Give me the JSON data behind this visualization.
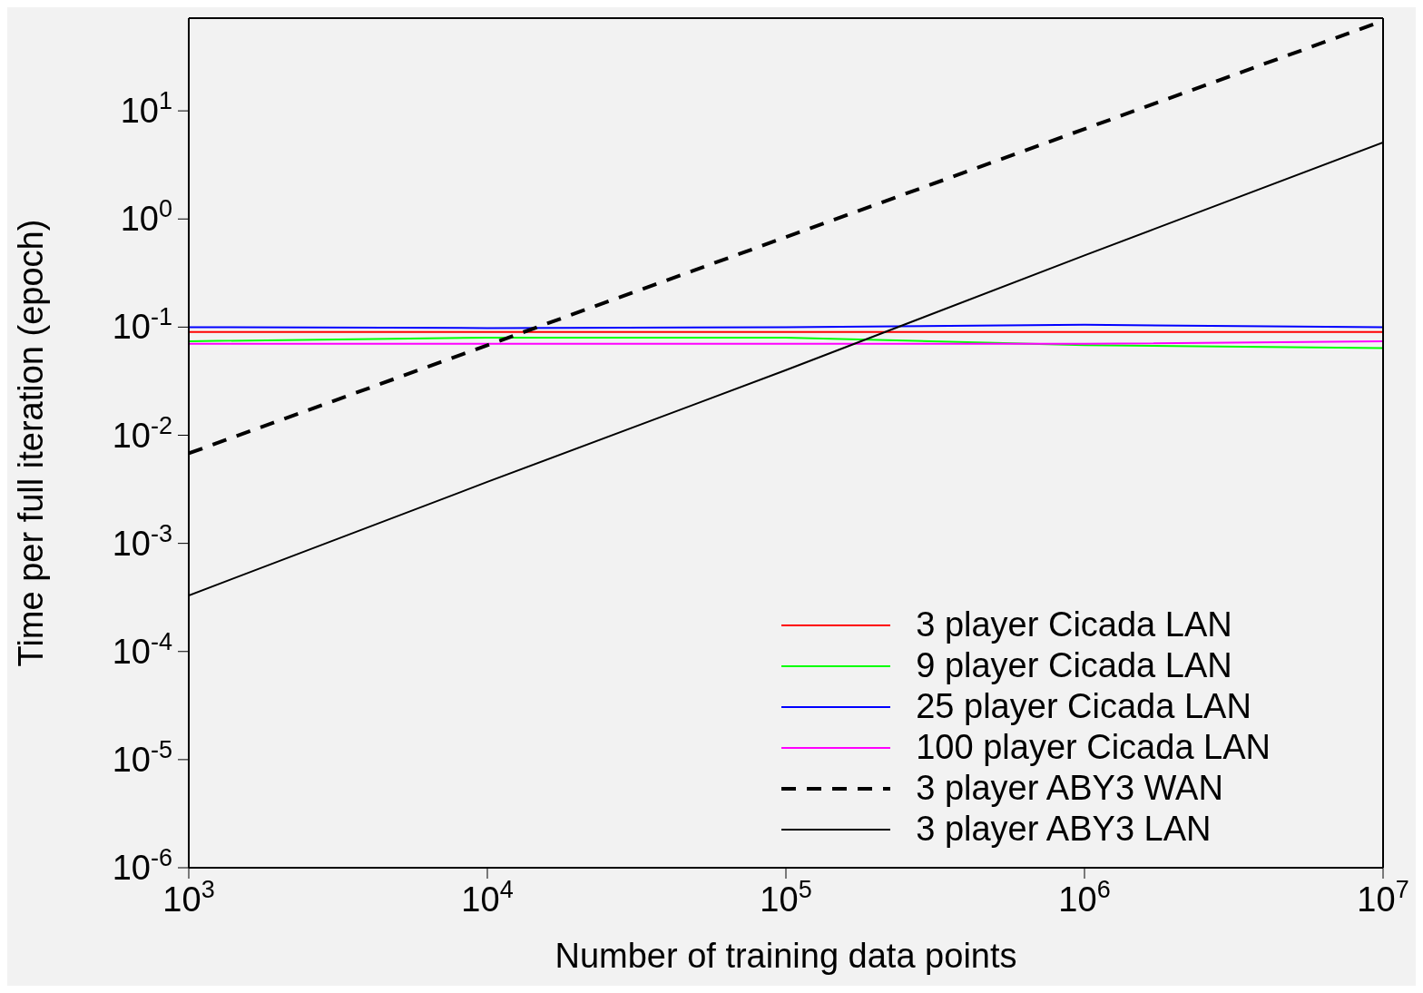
{
  "chart_data": {
    "type": "line",
    "xlabel": "Number of training data points",
    "ylabel": "Time per full iteration (epoch)",
    "x": [
      1000,
      10000,
      100000,
      1000000,
      10000000
    ],
    "series": [
      {
        "name": "3 player Cicada LAN",
        "color": "#ff0000",
        "values": [
          0.09,
          0.09,
          0.09,
          0.09,
          0.09
        ]
      },
      {
        "name": "9 player Cicada LAN",
        "color": "#00ff00",
        "values": [
          0.074,
          0.08,
          0.08,
          0.068,
          0.064
        ]
      },
      {
        "name": "25 player Cicada LAN",
        "color": "#0000ff",
        "values": [
          0.1,
          0.098,
          0.1,
          0.105,
          0.1
        ]
      },
      {
        "name": "100 player Cicada LAN",
        "color": "#ff00ff",
        "values": [
          0.07,
          0.07,
          0.07,
          0.07,
          0.074
        ]
      },
      {
        "name": "3 player ABY3 WAN",
        "color": "#000000",
        "line_style": "dashed",
        "values": [
          0.0068,
          0.068,
          0.68,
          6.8,
          68
        ]
      },
      {
        "name": "3 player ABY3 LAN",
        "color": "#000000",
        "line_style": "solid",
        "values": [
          0.00033,
          0.0037,
          0.04,
          0.46,
          5.1
        ]
      }
    ],
    "log": "xy",
    "xlim": [
      1000,
      10000000
    ],
    "ylim": [
      1e-06,
      72
    ],
    "xticks": [
      {
        "value": 1000,
        "label": "10$^{3}$"
      },
      {
        "value": 10000,
        "label": "10$^{4}$"
      },
      {
        "value": 100000,
        "label": "10$^{5}$"
      },
      {
        "value": 1000000,
        "label": "10$^{6}$"
      },
      {
        "value": 10000000,
        "label": "10$^{7}$"
      }
    ],
    "yticks": [
      {
        "value": 1e-06,
        "label": "10$^{-6}$"
      },
      {
        "value": 1e-05,
        "label": "10$^{-5}$"
      },
      {
        "value": 0.0001,
        "label": "10$^{-4}$"
      },
      {
        "value": 0.001,
        "label": "10$^{-3}$"
      },
      {
        "value": 0.01,
        "label": "10$^{-2}$"
      },
      {
        "value": 0.1,
        "label": "10$^{-1}$"
      },
      {
        "value": 1,
        "label": "10$^{0}$"
      },
      {
        "value": 10,
        "label": "10$^{1}$"
      }
    ],
    "grid": false,
    "legend": "bottom right",
    "marker": "none"
  }
}
